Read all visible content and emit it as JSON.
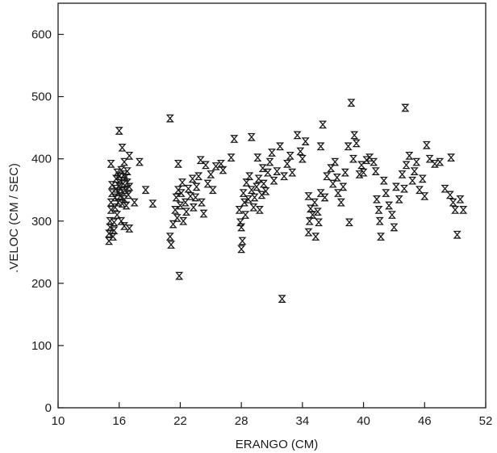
{
  "chart_data": {
    "type": "scatter",
    "xlabel": "ERANGO (CM)",
    "ylabel": ".VELOC (CM / SEC)",
    "xlim": [
      10,
      52
    ],
    "ylim": [
      0,
      650
    ],
    "xticks": [
      10,
      16,
      22,
      28,
      34,
      40,
      46,
      52
    ],
    "yticks": [
      0,
      100,
      200,
      300,
      400,
      500,
      600
    ],
    "marker": "hourglass",
    "marker_color": "#1a1a1a",
    "grid": false,
    "series": [
      {
        "points": [
          [
            15.0,
            268
          ],
          [
            15.0,
            280
          ],
          [
            15.1,
            290
          ],
          [
            15.1,
            300
          ],
          [
            15.2,
            318
          ],
          [
            15.2,
            330
          ],
          [
            15.3,
            345
          ],
          [
            15.3,
            358
          ],
          [
            15.2,
            392
          ],
          [
            15.4,
            275
          ],
          [
            15.5,
            285
          ],
          [
            15.5,
            298
          ],
          [
            15.6,
            322
          ],
          [
            15.6,
            338
          ],
          [
            15.7,
            352
          ],
          [
            15.7,
            368
          ],
          [
            15.8,
            378
          ],
          [
            15.8,
            310
          ],
          [
            15.9,
            330
          ],
          [
            15.9,
            346
          ],
          [
            16.0,
            356
          ],
          [
            16.0,
            372
          ],
          [
            16.1,
            340
          ],
          [
            16.1,
            365
          ],
          [
            16.2,
            382
          ],
          [
            16.2,
            300
          ],
          [
            16.3,
            328
          ],
          [
            16.3,
            348
          ],
          [
            16.4,
            360
          ],
          [
            16.5,
            335
          ],
          [
            16.5,
            375
          ],
          [
            16.6,
            350
          ],
          [
            16.7,
            325
          ],
          [
            16.8,
            362
          ],
          [
            16.9,
            342
          ],
          [
            17.0,
            355
          ],
          [
            16.8,
            380
          ],
          [
            16.6,
            370
          ],
          [
            16.0,
            445
          ],
          [
            16.3,
            418
          ],
          [
            16.5,
            395
          ],
          [
            17.0,
            405
          ],
          [
            16.5,
            292
          ],
          [
            17.0,
            288
          ],
          [
            17.5,
            330
          ],
          [
            18.0,
            395
          ],
          [
            18.6,
            350
          ],
          [
            19.3,
            328
          ],
          [
            21.0,
            465
          ],
          [
            21.0,
            275
          ],
          [
            21.1,
            262
          ],
          [
            21.3,
            295
          ],
          [
            21.5,
            318
          ],
          [
            21.6,
            338
          ],
          [
            21.7,
            305
          ],
          [
            21.8,
            350
          ],
          [
            21.8,
            392
          ],
          [
            21.9,
            212
          ],
          [
            22.0,
            325
          ],
          [
            22.1,
            345
          ],
          [
            22.2,
            362
          ],
          [
            22.3,
            300
          ],
          [
            22.5,
            330
          ],
          [
            22.6,
            315
          ],
          [
            22.8,
            352
          ],
          [
            23.0,
            340
          ],
          [
            23.2,
            368
          ],
          [
            23.3,
            322
          ],
          [
            23.5,
            338
          ],
          [
            23.6,
            355
          ],
          [
            23.8,
            372
          ],
          [
            24.0,
            398
          ],
          [
            24.1,
            330
          ],
          [
            24.3,
            312
          ],
          [
            24.5,
            390
          ],
          [
            24.7,
            360
          ],
          [
            25.0,
            375
          ],
          [
            25.2,
            350
          ],
          [
            25.5,
            388
          ],
          [
            26.0,
            392
          ],
          [
            26.2,
            382
          ],
          [
            27.0,
            402
          ],
          [
            27.3,
            432
          ],
          [
            27.8,
            318
          ],
          [
            27.9,
            298
          ],
          [
            28.0,
            290
          ],
          [
            28.1,
            268
          ],
          [
            28.0,
            255
          ],
          [
            28.2,
            345
          ],
          [
            28.3,
            330
          ],
          [
            28.4,
            310
          ],
          [
            28.5,
            362
          ],
          [
            28.7,
            335
          ],
          [
            28.8,
            372
          ],
          [
            29.0,
            350
          ],
          [
            29.0,
            435
          ],
          [
            29.2,
            322
          ],
          [
            29.3,
            338
          ],
          [
            29.5,
            355
          ],
          [
            29.6,
            402
          ],
          [
            29.7,
            368
          ],
          [
            29.8,
            318
          ],
          [
            30.0,
            342
          ],
          [
            30.1,
            385
          ],
          [
            30.2,
            360
          ],
          [
            30.4,
            348
          ],
          [
            30.6,
            378
          ],
          [
            30.8,
            395
          ],
          [
            31.0,
            410
          ],
          [
            31.2,
            365
          ],
          [
            31.5,
            380
          ],
          [
            31.8,
            420
          ],
          [
            32.0,
            175
          ],
          [
            32.2,
            372
          ],
          [
            32.5,
            392
          ],
          [
            32.8,
            405
          ],
          [
            33.0,
            378
          ],
          [
            33.5,
            438
          ],
          [
            33.8,
            412
          ],
          [
            34.0,
            400
          ],
          [
            34.3,
            428
          ],
          [
            34.6,
            340
          ],
          [
            34.6,
            282
          ],
          [
            34.7,
            300
          ],
          [
            34.8,
            320
          ],
          [
            35.0,
            310
          ],
          [
            35.2,
            330
          ],
          [
            35.3,
            275
          ],
          [
            35.5,
            315
          ],
          [
            35.6,
            298
          ],
          [
            35.8,
            345
          ],
          [
            35.8,
            420
          ],
          [
            36.0,
            455
          ],
          [
            36.2,
            338
          ],
          [
            36.4,
            372
          ],
          [
            36.8,
            385
          ],
          [
            37.0,
            360
          ],
          [
            37.2,
            395
          ],
          [
            37.4,
            370
          ],
          [
            37.5,
            345
          ],
          [
            37.8,
            330
          ],
          [
            38.0,
            355
          ],
          [
            38.2,
            378
          ],
          [
            38.5,
            420
          ],
          [
            38.6,
            298
          ],
          [
            38.8,
            490
          ],
          [
            39.0,
            400
          ],
          [
            39.1,
            438
          ],
          [
            39.3,
            425
          ],
          [
            39.6,
            375
          ],
          [
            39.8,
            390
          ],
          [
            40.0,
            378
          ],
          [
            40.3,
            398
          ],
          [
            40.6,
            402
          ],
          [
            41.0,
            395
          ],
          [
            41.2,
            380
          ],
          [
            41.3,
            335
          ],
          [
            41.5,
            318
          ],
          [
            41.6,
            300
          ],
          [
            41.7,
            275
          ],
          [
            42.0,
            365
          ],
          [
            42.2,
            345
          ],
          [
            42.5,
            325
          ],
          [
            42.8,
            310
          ],
          [
            43.0,
            290
          ],
          [
            43.2,
            355
          ],
          [
            43.5,
            335
          ],
          [
            43.8,
            375
          ],
          [
            44.0,
            352
          ],
          [
            44.1,
            482
          ],
          [
            44.2,
            390
          ],
          [
            44.5,
            405
          ],
          [
            44.8,
            365
          ],
          [
            45.0,
            380
          ],
          [
            45.2,
            395
          ],
          [
            45.5,
            350
          ],
          [
            45.8,
            368
          ],
          [
            46.0,
            340
          ],
          [
            46.2,
            422
          ],
          [
            46.5,
            400
          ],
          [
            47.0,
            392
          ],
          [
            47.5,
            395
          ],
          [
            48.0,
            352
          ],
          [
            48.5,
            342
          ],
          [
            48.6,
            402
          ],
          [
            48.8,
            330
          ],
          [
            49.0,
            318
          ],
          [
            49.2,
            278
          ],
          [
            49.5,
            335
          ],
          [
            49.8,
            318
          ]
        ]
      }
    ]
  }
}
